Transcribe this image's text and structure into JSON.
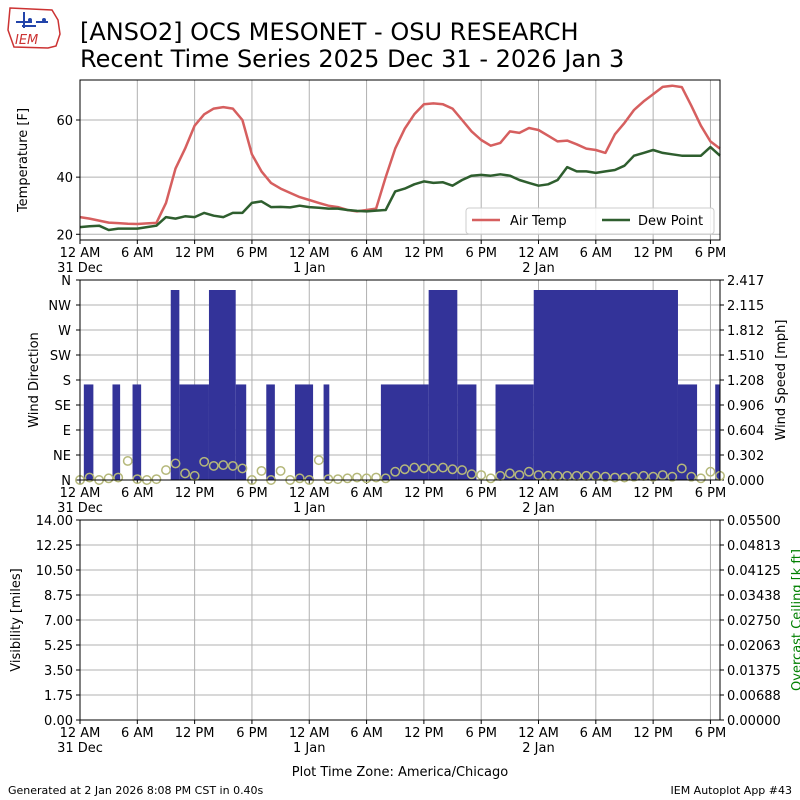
{
  "header": {
    "title_line1": "[ANSO2] OCS MESONET - OSU RESEARCH",
    "title_line2": "Recent Time Series 2025 Dec 31 - 2026 Jan 3",
    "logo_text": "IEM"
  },
  "footer": {
    "generated": "Generated at 2 Jan 2026 8:08 PM CST in 0.40s",
    "app": "IEM Autoplot App #43",
    "xlabel": "Plot Time Zone: America/Chicago"
  },
  "colors": {
    "air_temp": "#d65f5f",
    "dew_point": "#2e5e2e",
    "wind_bar": "#333399",
    "wind_speed": "#b5b87a",
    "ceiling_label": "#008000",
    "grid": "#b0b0b0"
  },
  "time_axis": {
    "start_hour": 0,
    "end_hour": 67,
    "ticks": [
      {
        "hour": 0,
        "label": "12 AM",
        "sub": "31 Dec"
      },
      {
        "hour": 6,
        "label": "6 AM",
        "sub": ""
      },
      {
        "hour": 12,
        "label": "12 PM",
        "sub": ""
      },
      {
        "hour": 18,
        "label": "6 PM",
        "sub": ""
      },
      {
        "hour": 24,
        "label": "12 AM",
        "sub": "1 Jan"
      },
      {
        "hour": 30,
        "label": "6 AM",
        "sub": ""
      },
      {
        "hour": 36,
        "label": "12 PM",
        "sub": ""
      },
      {
        "hour": 42,
        "label": "6 PM",
        "sub": ""
      },
      {
        "hour": 48,
        "label": "12 AM",
        "sub": "2 Jan"
      },
      {
        "hour": 54,
        "label": "6 AM",
        "sub": ""
      },
      {
        "hour": 60,
        "label": "12 PM",
        "sub": ""
      },
      {
        "hour": 66,
        "label": "6 PM",
        "sub": ""
      }
    ]
  },
  "chart_data": [
    {
      "type": "line",
      "ylabel": "Temperature [F]",
      "ylim": [
        18,
        74
      ],
      "yticks": [
        20,
        40,
        60
      ],
      "grid": true,
      "legend_position": "lower-right",
      "x_hours": [
        0,
        1,
        2,
        3,
        4,
        5,
        6,
        7,
        8,
        9,
        10,
        11,
        12,
        13,
        14,
        15,
        16,
        17,
        18,
        19,
        20,
        21,
        22,
        23,
        24,
        25,
        26,
        27,
        28,
        29,
        30,
        31,
        32,
        33,
        34,
        35,
        36,
        37,
        38,
        39,
        40,
        41,
        42,
        43,
        44,
        45,
        46,
        47,
        48,
        49,
        50,
        51,
        52,
        53,
        54,
        55,
        56,
        57,
        58,
        59,
        60,
        61,
        62,
        63,
        64,
        65,
        66,
        67
      ],
      "series": [
        {
          "name": "Air Temp",
          "key": "air_temp",
          "values": [
            26,
            25.5,
            24.8,
            24.1,
            23.9,
            23.7,
            23.6,
            23.8,
            24,
            31,
            43,
            50,
            58,
            62,
            64,
            64.5,
            64,
            60,
            48,
            42,
            38,
            36,
            34.5,
            33,
            32,
            31,
            30,
            29.5,
            28.5,
            28,
            28.5,
            29,
            40,
            50,
            57,
            62,
            65.5,
            65.8,
            65.5,
            64,
            60,
            56,
            53,
            51,
            52,
            56,
            55.5,
            57.2,
            56.5,
            54.5,
            52.5,
            52.8,
            51.5,
            50,
            49.5,
            48.5,
            55,
            59,
            63.5,
            66.5,
            69,
            71.6,
            72,
            71.5,
            65,
            58,
            52.5,
            50
          ]
        },
        {
          "name": "Dew Point",
          "key": "dew_point",
          "values": [
            22.5,
            22.8,
            23,
            21.5,
            22,
            22,
            22,
            22.5,
            23,
            26,
            25.5,
            26.3,
            26,
            27.5,
            26.5,
            26,
            27.5,
            27.5,
            31,
            31.5,
            29.5,
            29.6,
            29.4,
            30,
            29.5,
            29.3,
            29,
            29,
            28.5,
            28.2,
            28,
            28.3,
            28.5,
            35,
            36,
            37.5,
            38.5,
            38,
            38.2,
            37,
            39,
            40.5,
            40.8,
            40.5,
            41,
            40.5,
            39,
            38,
            37,
            37.5,
            39,
            43.5,
            42,
            42,
            41.5,
            42,
            42.5,
            44,
            47.5,
            48.5,
            49.5,
            48.5,
            48,
            47.5,
            47.5,
            47.5,
            50.5,
            47.5
          ]
        }
      ]
    },
    {
      "type": "bar",
      "ylabel": "Wind Direction",
      "ylabel_right": "Wind Speed [mph]",
      "ylim": [
        0,
        360
      ],
      "ylim_right": [
        0,
        2.417
      ],
      "yticks": [
        {
          "deg": 0,
          "label": "N"
        },
        {
          "deg": 45,
          "label": "NE"
        },
        {
          "deg": 90,
          "label": "E"
        },
        {
          "deg": 135,
          "label": "SE"
        },
        {
          "deg": 180,
          "label": "S"
        },
        {
          "deg": 225,
          "label": "SW"
        },
        {
          "deg": 270,
          "label": "W"
        },
        {
          "deg": 315,
          "label": "NW"
        },
        {
          "deg": 360,
          "label": "N"
        }
      ],
      "yticks_right": [
        "0.000",
        "0.302",
        "0.604",
        "0.906",
        "1.208",
        "1.510",
        "1.812",
        "2.115",
        "2.417"
      ],
      "grid": true,
      "direction_bars": [
        {
          "start": 0.4,
          "end": 1.4,
          "deg": 172
        },
        {
          "start": 3.4,
          "end": 4.2,
          "deg": 172
        },
        {
          "start": 5.5,
          "end": 6.4,
          "deg": 172
        },
        {
          "start": 9.5,
          "end": 10.4,
          "deg": 342
        },
        {
          "start": 10.4,
          "end": 13.5,
          "deg": 172
        },
        {
          "start": 13.5,
          "end": 16.3,
          "deg": 342
        },
        {
          "start": 16.3,
          "end": 17.4,
          "deg": 172
        },
        {
          "start": 19.5,
          "end": 20.4,
          "deg": 172
        },
        {
          "start": 22.5,
          "end": 24.4,
          "deg": 172
        },
        {
          "start": 25.5,
          "end": 26.1,
          "deg": 172
        },
        {
          "start": 31.5,
          "end": 36.5,
          "deg": 172
        },
        {
          "start": 36.5,
          "end": 39.5,
          "deg": 342
        },
        {
          "start": 39.5,
          "end": 41.5,
          "deg": 172
        },
        {
          "start": 43.5,
          "end": 47.5,
          "deg": 172
        },
        {
          "start": 47.5,
          "end": 62.6,
          "deg": 342
        },
        {
          "start": 62.6,
          "end": 64.6,
          "deg": 172
        },
        {
          "start": 66.5,
          "end": 67.0,
          "deg": 172
        }
      ],
      "speed_hours": [
        0,
        1,
        2,
        3,
        4,
        5,
        6,
        7,
        8,
        9,
        10,
        11,
        12,
        13,
        14,
        15,
        16,
        17,
        18,
        19,
        20,
        21,
        22,
        23,
        24,
        25,
        26,
        27,
        28,
        29,
        30,
        31,
        32,
        33,
        34,
        35,
        36,
        37,
        38,
        39,
        40,
        41,
        42,
        43,
        44,
        45,
        46,
        47,
        48,
        49,
        50,
        51,
        52,
        53,
        54,
        55,
        56,
        57,
        58,
        59,
        60,
        61,
        62,
        63,
        64,
        65,
        66,
        67
      ],
      "speed_values": [
        0,
        0.03,
        0,
        0.02,
        0.03,
        0.23,
        0.01,
        0,
        0.01,
        0.12,
        0.2,
        0.08,
        0.05,
        0.22,
        0.17,
        0.18,
        0.17,
        0.14,
        0,
        0.11,
        0,
        0.11,
        0,
        0.02,
        0,
        0.24,
        0.01,
        0.01,
        0.02,
        0.03,
        0.02,
        0.03,
        0.02,
        0.1,
        0.13,
        0.15,
        0.14,
        0.14,
        0.15,
        0.13,
        0.12,
        0.07,
        0.06,
        0.02,
        0.05,
        0.08,
        0.06,
        0.1,
        0.06,
        0.05,
        0.05,
        0.05,
        0.05,
        0.05,
        0.05,
        0.04,
        0.03,
        0.03,
        0.04,
        0.05,
        0.04,
        0.06,
        0.04,
        0.14,
        0.04,
        0.02,
        0.1,
        0.05
      ]
    },
    {
      "type": "line",
      "ylabel": "Visibility [miles]",
      "ylabel_right": "Overcast Ceiling [k ft]",
      "ylim": [
        0,
        14
      ],
      "ylim_right": [
        0,
        0.055
      ],
      "yticks": [
        "0.00",
        "1.75",
        "3.50",
        "5.25",
        "7.00",
        "8.75",
        "10.50",
        "12.25",
        "14.00"
      ],
      "yticks_right": [
        "0.00000",
        "0.00688",
        "0.01375",
        "0.02063",
        "0.02750",
        "0.03438",
        "0.04125",
        "0.04813",
        "0.05500"
      ],
      "grid": true,
      "series": []
    }
  ]
}
